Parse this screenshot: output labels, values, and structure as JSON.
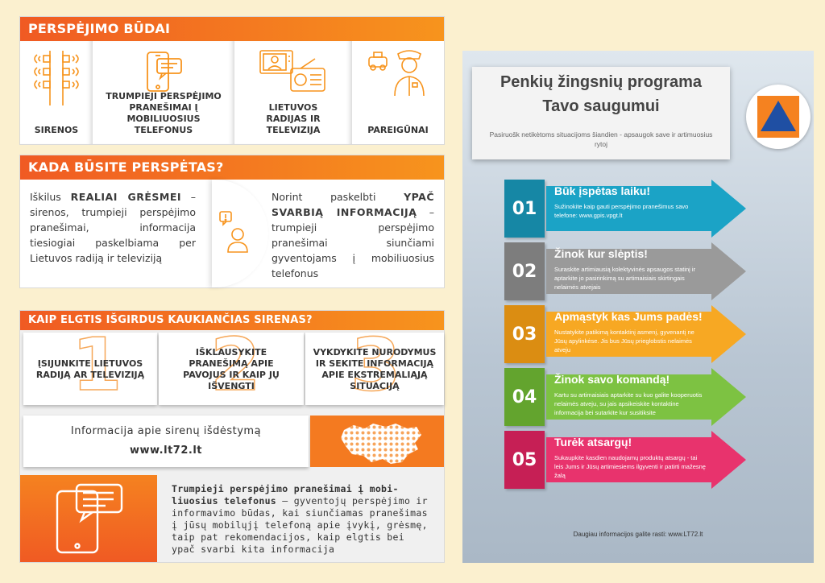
{
  "warning": {
    "title": "PERSPĖJIMO BŪDAI",
    "items": [
      {
        "label": "SIRENOS",
        "icon": "siren-icon"
      },
      {
        "label": "TRUMPIEJI PERSPĖJIMO PRANEŠIMAI Į MOBILIUOSIUS TELEFONUS",
        "icon": "mobile-phone-icon"
      },
      {
        "label": "LIETUVOS RADIJAS IR TELEVIZIJA",
        "icon": "radio-tv-icon"
      },
      {
        "label": "PAREIGŪNAI",
        "icon": "police-officer-icon"
      }
    ]
  },
  "when": {
    "title": "KADA BŪSITE PERSPĖTAS?",
    "left_pre": "Iškilus ",
    "left_bold": "REALIAI GRĖSMEI",
    "left_post": " – sirenos, trumpieji perspėjimo pranešimai, informacija tiesiogiai paskelbiama per Lietuvos radiją ir televiziją",
    "right_pre": "Norint paskelbti ",
    "right_bold": "YPAČ SVARBIĄ INFORMACIJĄ",
    "right_post": " – trumpieji perspėjimo pranešimai siunčiami gyventojams į mobiliuosius telefonus"
  },
  "sirens": {
    "title": "KAIP ELGTIS IŠGIRDUS KAUKIANČIAS SIRENAS?",
    "steps": [
      {
        "num": "1",
        "text": "ĮSIJUNKITE LIETUVOS RADIJĄ AR TELEVIZIJĄ"
      },
      {
        "num": "2",
        "text": "IŠKLAUSYKITE PRANEŠIMĄ APIE PAVOJUS IR KAIP JŲ IŠVENGTI"
      },
      {
        "num": "3",
        "text": "VYKDYKITE NURODYMUS IR SEKITE INFORMACIJĄ APIE EKSTREMALIĄJĄ SITUACIJĄ"
      }
    ],
    "map_info": "Informacija apie sirenų išdėstymą",
    "map_url": "www.lt72.lt"
  },
  "sms": {
    "bold": "Trumpieji perspėjimo pranešimai į mobi-liuosius telefonus",
    "rest": " – gyventojų perspėjimo ir informavimo būdas, kai siunčiamas pranešimas į jūsų mobilųjį telefoną apie įvykį, grėsmę, taip pat rekomendacijos, kaip elgtis bei ypač svarbi kita informacija"
  },
  "poster": {
    "title_line1": "Penkių žingsnių programa",
    "title_line2": "Tavo saugumui",
    "subtitle": "Pasiruošk netikėtoms situacijoms šiandien - apsaugok save ir artimuosius rytoj",
    "steps": [
      {
        "num": "01",
        "title": "Būk įspėtas laiku!",
        "desc": "Sužinokite kaip gauti perspėjimo pranešimus savo telefone: www.gpis.vpgt.lt",
        "color": "#1ba3c6",
        "dark": "#1687a5"
      },
      {
        "num": "02",
        "title": "Žinok kur slėptis!",
        "desc": "Suraskite artimiausią kolektyvinės apsaugos statinį ir aptarkite jo pasirinkimą su artimaisiais skirtingais nelaimės atvejais",
        "color": "#9a9a9a",
        "dark": "#7d7d7d"
      },
      {
        "num": "03",
        "title": "Apmąstyk kas Jums padės!",
        "desc": "Nustatykite patikimą kontaktinį asmenį, gyvenantį ne Jūsų apylinkėse. Jis bus Jūsų prieglobstis nelaimės atveju",
        "color": "#f7a823",
        "dark": "#db8d12"
      },
      {
        "num": "04",
        "title": "Žinok savo komandą!",
        "desc": "Kartu su artimaisiais aptarkite su kuo galite kooperuotis nelaimės atveju, su jais apsikeiskite kontaktine informacija bei sutarkite kur susitiksite",
        "color": "#7dc242",
        "dark": "#63a42e"
      },
      {
        "num": "05",
        "title": "Turėk atsargų!",
        "desc": "Sukaupkite kasdien naudojamų produktų atsargų - tai leis Jums ir Jūsų artimiesiems ilgyventi ir patirti mažesnę žalą",
        "color": "#e8336d",
        "dark": "#c61f55"
      }
    ],
    "footer": "Daugiau informacijos galite rasti: www.LT72.lt",
    "logo_colors": {
      "bg": "#f58220",
      "triangle": "#1f4fa3"
    }
  }
}
